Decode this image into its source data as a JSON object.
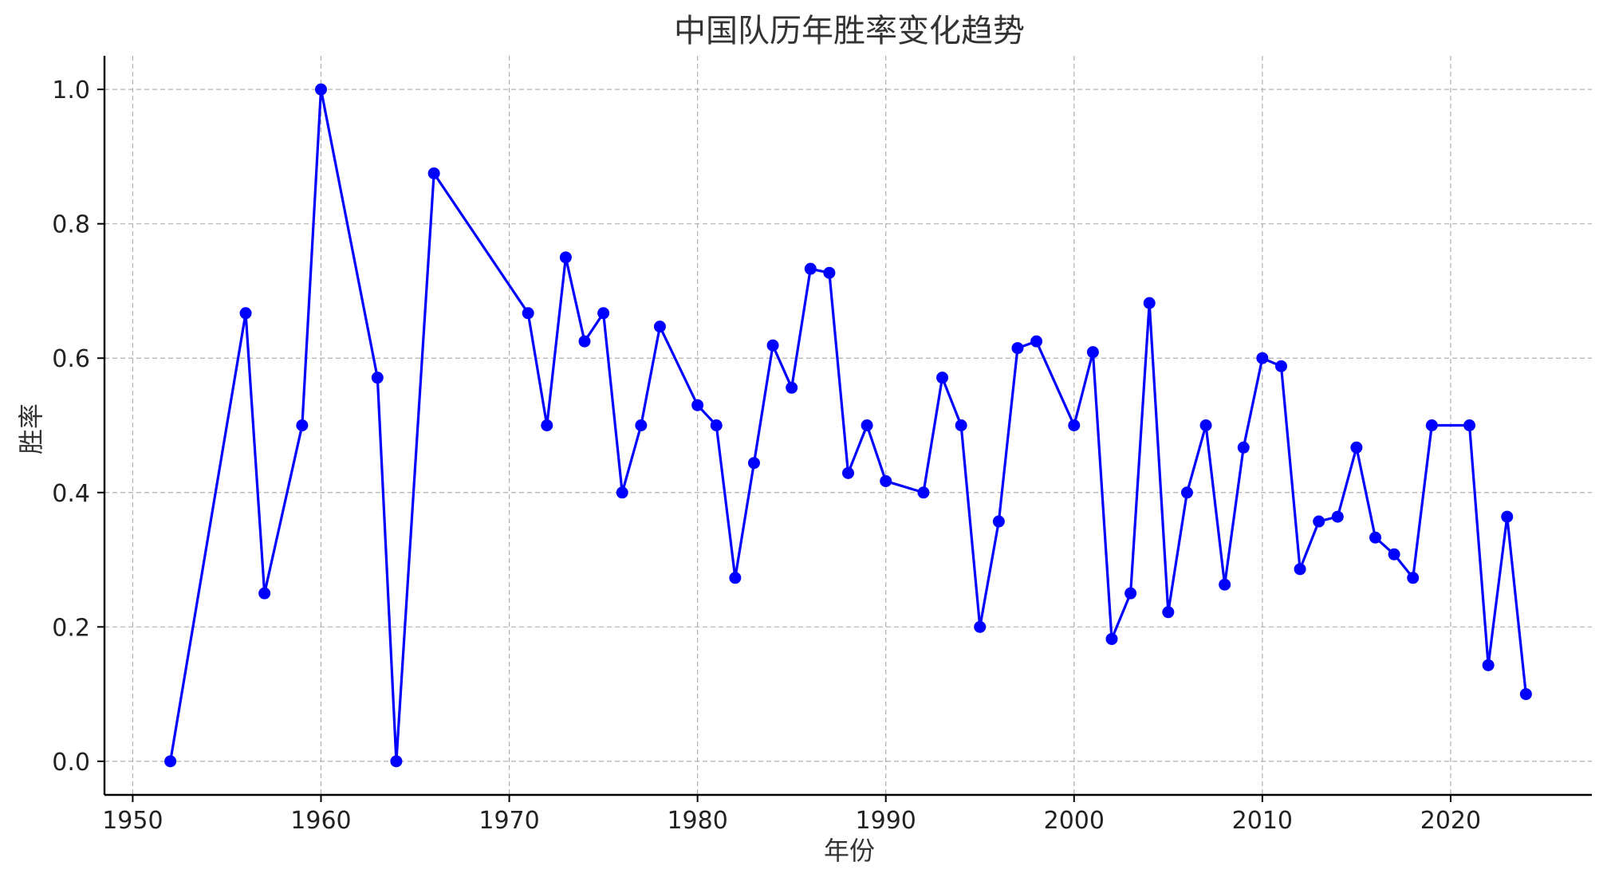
{
  "chart_data": {
    "type": "line",
    "title": "中国队历年胜率变化趋势",
    "xlabel": "年份",
    "ylabel": "胜率",
    "xlim": [
      1948.5,
      2027.5
    ],
    "ylim": [
      -0.05,
      1.05
    ],
    "xticks": [
      1950,
      1960,
      1970,
      1980,
      1990,
      2000,
      2010,
      2020
    ],
    "yticks": [
      0.0,
      0.2,
      0.4,
      0.6,
      0.8,
      1.0
    ],
    "xtick_labels": [
      "1950",
      "1960",
      "1970",
      "1980",
      "1990",
      "2000",
      "2010",
      "2020"
    ],
    "ytick_labels": [
      "0.0",
      "0.2",
      "0.4",
      "0.6",
      "0.8",
      "1.0"
    ],
    "grid": true,
    "series": [
      {
        "color": "#0000ff",
        "x": [
          1952,
          1956,
          1957,
          1959,
          1960,
          1963,
          1964,
          1966,
          1971,
          1972,
          1973,
          1974,
          1975,
          1976,
          1977,
          1978,
          1980,
          1981,
          1982,
          1983,
          1984,
          1985,
          1986,
          1987,
          1988,
          1989,
          1990,
          1992,
          1993,
          1994,
          1995,
          1996,
          1997,
          1998,
          2000,
          2001,
          2002,
          2003,
          2004,
          2005,
          2006,
          2007,
          2008,
          2009,
          2010,
          2011,
          2012,
          2013,
          2014,
          2015,
          2016,
          2017,
          2018,
          2019,
          2021,
          2022,
          2023,
          2024
        ],
        "y": [
          0.0,
          0.667,
          0.25,
          0.5,
          1.0,
          0.571,
          0.0,
          0.875,
          0.667,
          0.5,
          0.75,
          0.625,
          0.667,
          0.4,
          0.5,
          0.647,
          0.53,
          0.5,
          0.273,
          0.444,
          0.619,
          0.556,
          0.733,
          0.727,
          0.429,
          0.5,
          0.417,
          0.4,
          0.571,
          0.5,
          0.2,
          0.357,
          0.615,
          0.625,
          0.5,
          0.609,
          0.182,
          0.25,
          0.682,
          0.222,
          0.4,
          0.5,
          0.263,
          0.467,
          0.6,
          0.588,
          0.286,
          0.357,
          0.364,
          0.467,
          0.333,
          0.308,
          0.273,
          0.5,
          0.5,
          0.143,
          0.364,
          0.1
        ]
      }
    ]
  }
}
